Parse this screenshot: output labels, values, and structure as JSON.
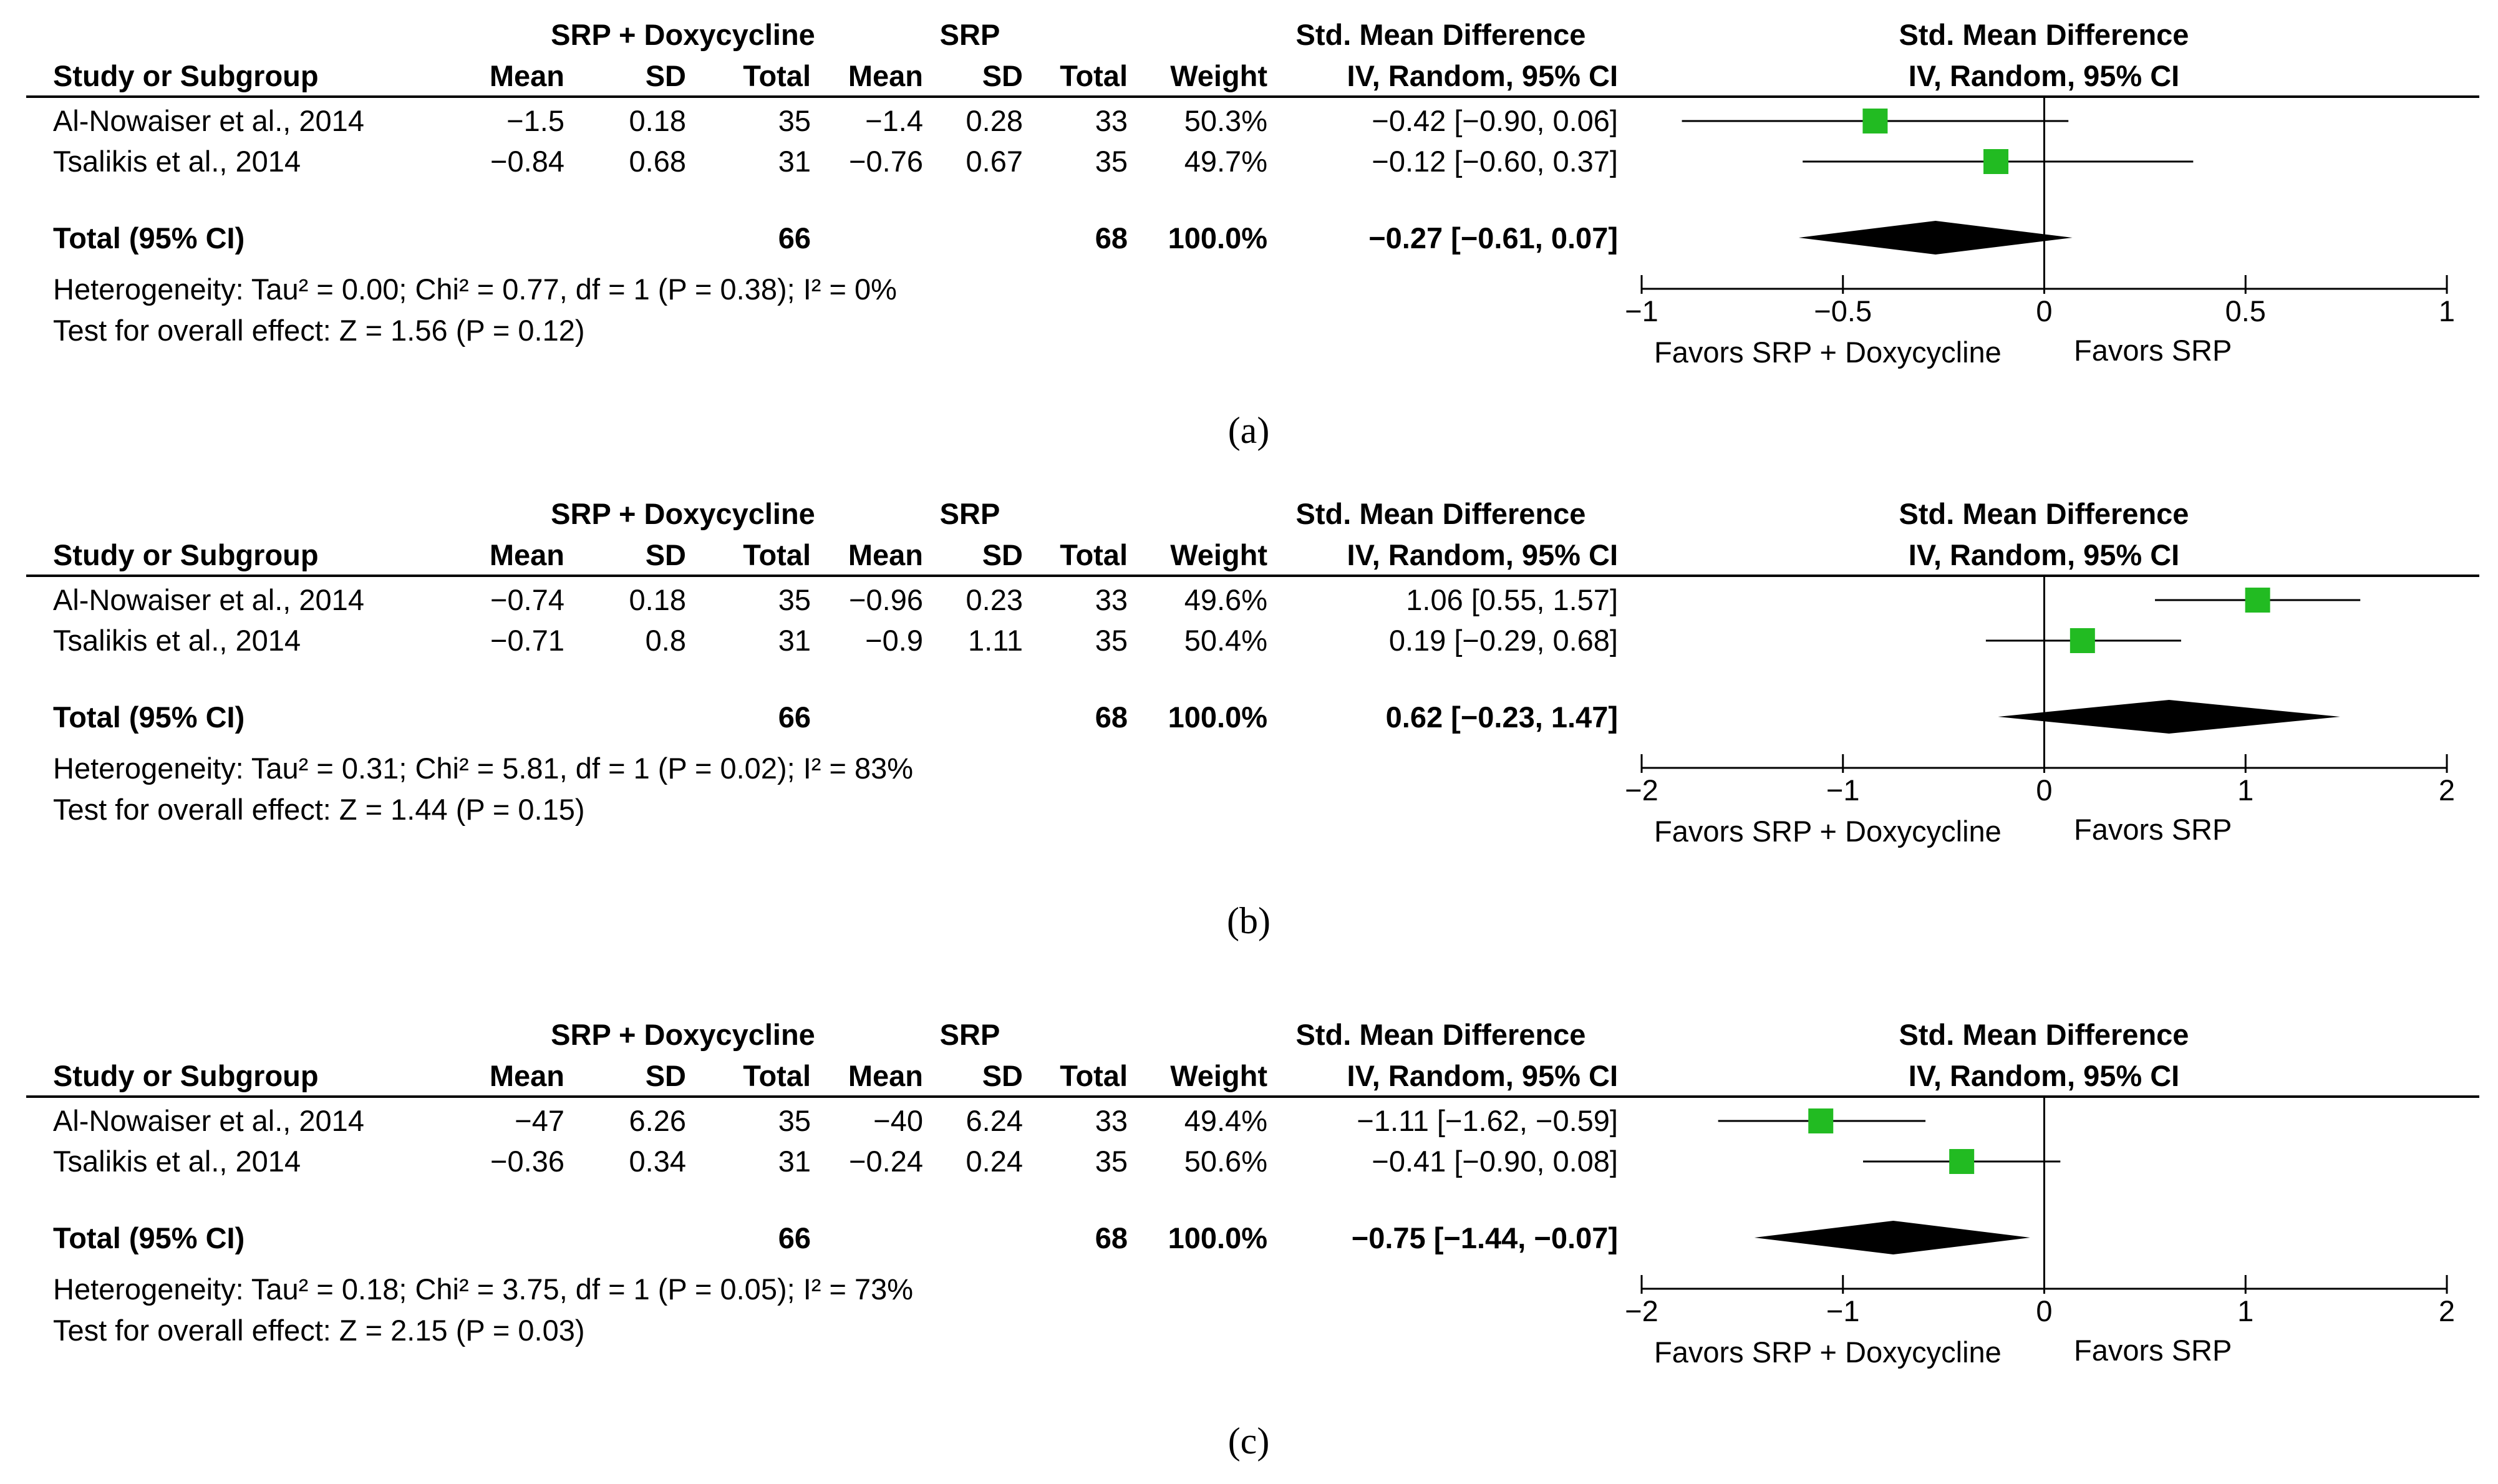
{
  "headers": {
    "group1": "SRP + Doxycycline",
    "group2": "SRP",
    "smd_table": "Std. Mean Difference",
    "study": "Study or Subgroup",
    "mean": "Mean",
    "sd": "SD",
    "total": "Total",
    "weight": "Weight",
    "method_table": "IV, Random, 95% CI",
    "smd_plot": "Std. Mean Difference",
    "method_plot": "IV, Random, 95% CI"
  },
  "favors": {
    "left": "Favors SRP + Doxycycline",
    "right": "Favors SRP"
  },
  "chart_data": [
    {
      "type": "forest",
      "label": "(a)",
      "xlim": [
        -1,
        1
      ],
      "ticks": [
        -1,
        -0.5,
        0,
        0.5,
        1
      ],
      "tick_labels": [
        "−1",
        "−0.5",
        "0",
        "0.5",
        "1"
      ],
      "studies": [
        {
          "name": "Al-Nowaiser et al., 2014",
          "mean1": "−1.5",
          "sd1": "0.18",
          "total1": "35",
          "mean2": "−1.4",
          "sd2": "0.28",
          "total2": "33",
          "weight": "50.3%",
          "ci_text": "−0.42 [−0.90, 0.06]",
          "est": -0.42,
          "lo": -0.9,
          "hi": 0.06
        },
        {
          "name": "Tsalikis et al., 2014",
          "mean1": "−0.84",
          "sd1": "0.68",
          "total1": "31",
          "mean2": "−0.76",
          "sd2": "0.67",
          "total2": "35",
          "weight": "49.7%",
          "ci_text": "−0.12 [−0.60, 0.37]",
          "est": -0.12,
          "lo": -0.6,
          "hi": 0.37
        }
      ],
      "total": {
        "label": "Total (95% CI)",
        "total1": "66",
        "total2": "68",
        "weight": "100.0%",
        "ci_text": "−0.27 [−0.61, 0.07]",
        "est": -0.27,
        "lo": -0.61,
        "hi": 0.07
      },
      "heterogeneity": "Heterogeneity: Tau² = 0.00; Chi² = 0.77, df = 1 (P = 0.38); I² = 0%",
      "overall": "Test for overall effect: Z = 1.56 (P = 0.12)"
    },
    {
      "type": "forest",
      "label": "(b)",
      "xlim": [
        -2,
        2
      ],
      "ticks": [
        -2,
        -1,
        0,
        1,
        2
      ],
      "tick_labels": [
        "−2",
        "−1",
        "0",
        "1",
        "2"
      ],
      "studies": [
        {
          "name": "Al-Nowaiser et al., 2014",
          "mean1": "−0.74",
          "sd1": "0.18",
          "total1": "35",
          "mean2": "−0.96",
          "sd2": "0.23",
          "total2": "33",
          "weight": "49.6%",
          "ci_text": "1.06 [0.55, 1.57]",
          "est": 1.06,
          "lo": 0.55,
          "hi": 1.57
        },
        {
          "name": "Tsalikis et al., 2014",
          "mean1": "−0.71",
          "sd1": "0.8",
          "total1": "31",
          "mean2": "−0.9",
          "sd2": "1.11",
          "total2": "35",
          "weight": "50.4%",
          "ci_text": "0.19 [−0.29, 0.68]",
          "est": 0.19,
          "lo": -0.29,
          "hi": 0.68
        }
      ],
      "total": {
        "label": "Total (95% CI)",
        "total1": "66",
        "total2": "68",
        "weight": "100.0%",
        "ci_text": "0.62 [−0.23, 1.47]",
        "est": 0.62,
        "lo": -0.23,
        "hi": 1.47
      },
      "heterogeneity": "Heterogeneity: Tau² = 0.31; Chi² = 5.81, df = 1 (P = 0.02); I² = 83%",
      "overall": "Test for overall effect: Z = 1.44 (P = 0.15)"
    },
    {
      "type": "forest",
      "label": "(c)",
      "xlim": [
        -2,
        2
      ],
      "ticks": [
        -2,
        -1,
        0,
        1,
        2
      ],
      "tick_labels": [
        "−2",
        "−1",
        "0",
        "1",
        "2"
      ],
      "studies": [
        {
          "name": "Al-Nowaiser et al., 2014",
          "mean1": "−47",
          "sd1": "6.26",
          "total1": "35",
          "mean2": "−40",
          "sd2": "6.24",
          "total2": "33",
          "weight": "49.4%",
          "ci_text": "−1.11 [−1.62, −0.59]",
          "est": -1.11,
          "lo": -1.62,
          "hi": -0.59
        },
        {
          "name": "Tsalikis et al., 2014",
          "mean1": "−0.36",
          "sd1": "0.34",
          "total1": "31",
          "mean2": "−0.24",
          "sd2": "0.24",
          "total2": "35",
          "weight": "50.6%",
          "ci_text": "−0.41 [−0.90, 0.08]",
          "est": -0.41,
          "lo": -0.9,
          "hi": 0.08
        }
      ],
      "total": {
        "label": "Total (95% CI)",
        "total1": "66",
        "total2": "68",
        "weight": "100.0%",
        "ci_text": "−0.75 [−1.44, −0.07]",
        "est": -0.75,
        "lo": -1.44,
        "hi": -0.07
      },
      "heterogeneity": "Heterogeneity: Tau² = 0.18; Chi² = 3.75, df = 1 (P = 0.05); I² = 73%",
      "overall": "Test for overall effect: Z = 2.15 (P = 0.03)"
    }
  ],
  "colors": {
    "marker": "#22bb22",
    "ink": "#000000",
    "background": "#ffffff"
  }
}
